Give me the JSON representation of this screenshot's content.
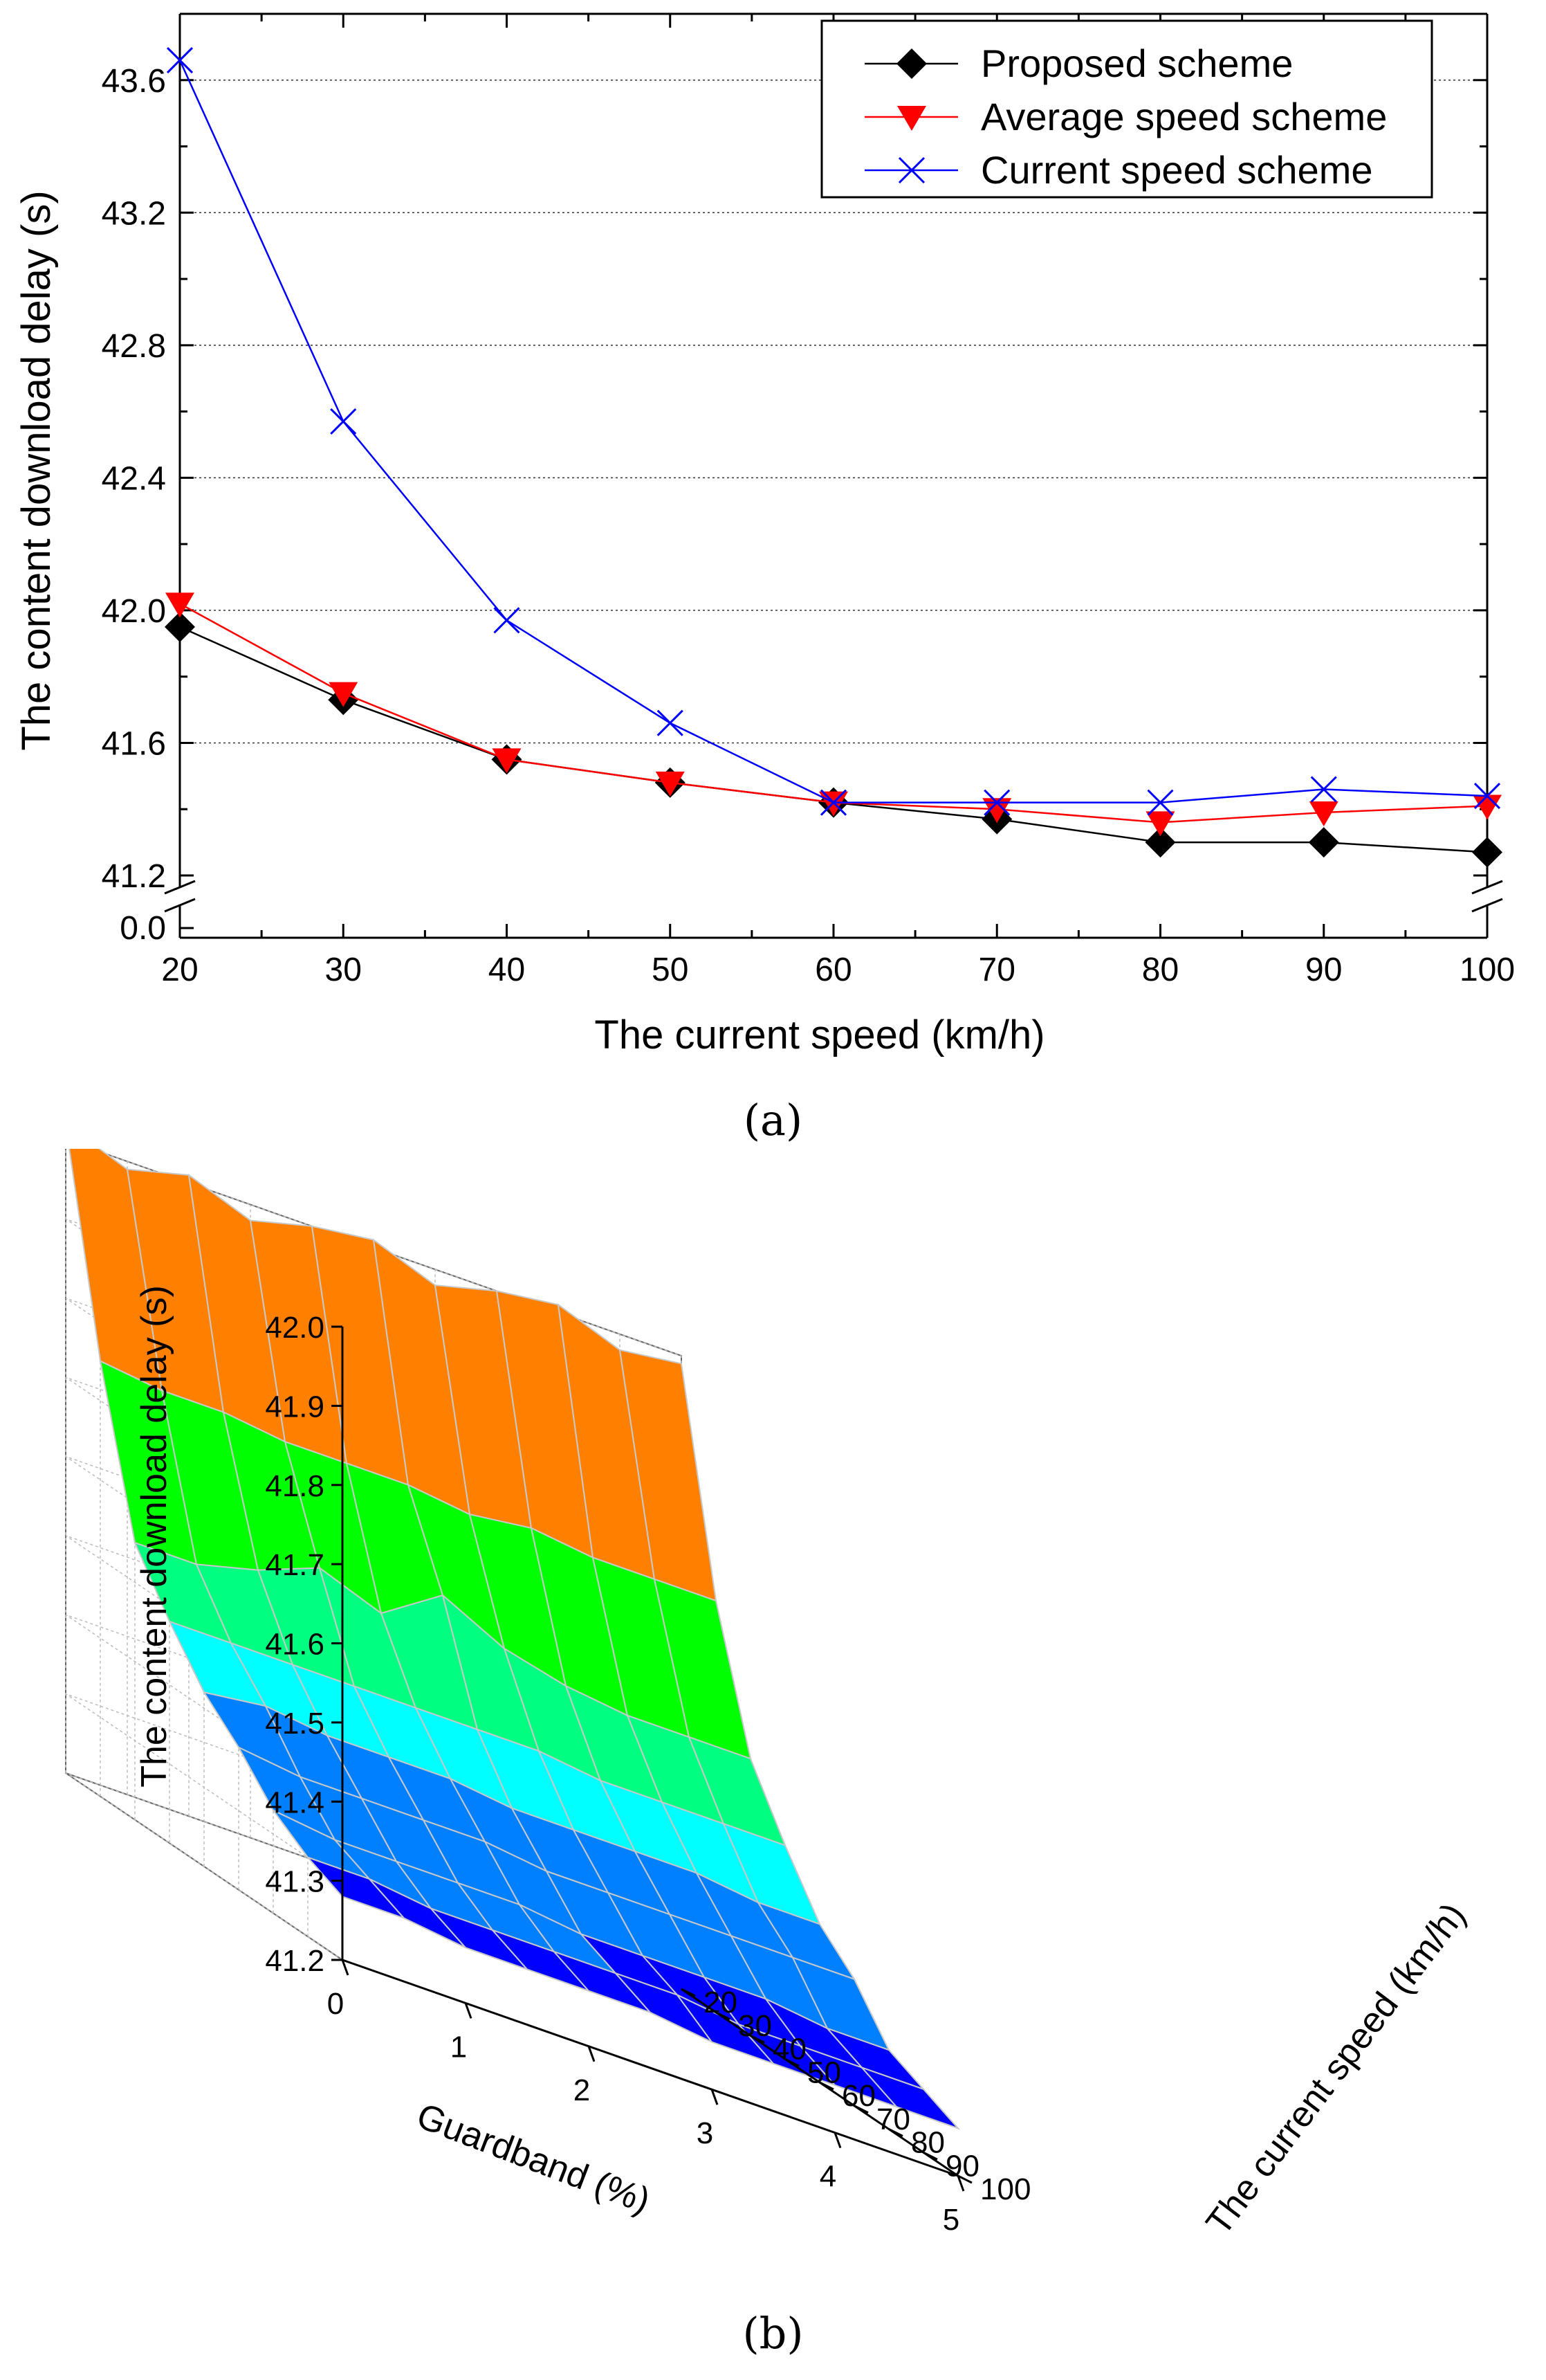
{
  "panel_a": {
    "caption": "(a)",
    "chart_data": {
      "type": "line",
      "x": [
        20,
        30,
        40,
        50,
        60,
        70,
        80,
        90,
        100
      ],
      "xlabel": "The current speed (km/h)",
      "ylabel": "The content download delay (s)",
      "xlim": [
        20,
        100
      ],
      "ylim_upper": [
        41.2,
        43.8
      ],
      "broken_axis_lower_tick": "0.0",
      "xticks": [
        "20",
        "30",
        "40",
        "50",
        "60",
        "70",
        "80",
        "90",
        "100"
      ],
      "yticks": [
        "41.2",
        "41.6",
        "42.0",
        "42.4",
        "42.8",
        "43.2",
        "43.6"
      ],
      "grid": "horizontal dashed",
      "legend_position": "top-right",
      "series": [
        {
          "name": "Proposed scheme",
          "color": "#000000",
          "marker": "diamond",
          "values": [
            41.95,
            41.73,
            41.55,
            41.48,
            41.42,
            41.37,
            41.3,
            41.3,
            41.27
          ]
        },
        {
          "name": "Average speed scheme",
          "color": "#ff0000",
          "marker": "triangle-down",
          "values": [
            42.02,
            41.75,
            41.55,
            41.48,
            41.42,
            41.4,
            41.36,
            41.39,
            41.41
          ]
        },
        {
          "name": "Current speed scheme",
          "color": "#0000ff",
          "marker": "x",
          "values": [
            43.66,
            42.57,
            41.97,
            41.66,
            41.42,
            41.42,
            41.42,
            41.46,
            41.44
          ]
        }
      ]
    }
  },
  "panel_b": {
    "caption": "(b)",
    "chart_data": {
      "type": "surface3d",
      "xlabel": "Guardband (%)",
      "ylabel": "The current speed (km/h)",
      "zlabel": "The content download delay (s)",
      "xticks": [
        "0",
        "1",
        "2",
        "3",
        "4",
        "5"
      ],
      "yticks": [
        "20",
        "30",
        "40",
        "50",
        "60",
        "70",
        "80",
        "90",
        "100"
      ],
      "zticks": [
        "41.2",
        "41.3",
        "41.4",
        "41.5",
        "41.6",
        "41.7",
        "41.8",
        "41.9",
        "42.0"
      ],
      "zlim": [
        41.2,
        42.0
      ],
      "colormap": [
        "#0000ff",
        "#0080ff",
        "#00ffff",
        "#00ff80",
        "#00ff00",
        "#ffff00",
        "#ff8000",
        "#ff0000"
      ],
      "guardband": [
        0,
        0.5,
        1,
        1.5,
        2,
        2.5,
        3,
        3.5,
        4,
        4.5,
        5
      ],
      "speed": [
        20,
        30,
        40,
        50,
        60,
        70,
        80,
        90,
        100
      ],
      "delay": [
        [
          42.02,
          41.99,
          42.01,
          41.98,
          42.0,
          42.01,
          41.98,
          42.0,
          42.01,
          41.98,
          41.99
        ],
        [
          41.75,
          41.74,
          41.74,
          41.73,
          41.73,
          41.73,
          41.72,
          41.73,
          41.72,
          41.72,
          41.72
        ],
        [
          41.55,
          41.55,
          41.57,
          41.6,
          41.57,
          41.62,
          41.58,
          41.56,
          41.55,
          41.55,
          41.55
        ],
        [
          41.48,
          41.48,
          41.48,
          41.48,
          41.48,
          41.48,
          41.48,
          41.47,
          41.47,
          41.47,
          41.47
        ],
        [
          41.42,
          41.43,
          41.42,
          41.42,
          41.42,
          41.41,
          41.41,
          41.41,
          41.41,
          41.4,
          41.4
        ],
        [
          41.38,
          41.37,
          41.37,
          41.37,
          41.37,
          41.36,
          41.36,
          41.36,
          41.36,
          41.36,
          41.36
        ],
        [
          41.33,
          41.32,
          41.32,
          41.32,
          41.32,
          41.31,
          41.31,
          41.31,
          41.31,
          41.3,
          41.3
        ],
        [
          41.3,
          41.3,
          41.29,
          41.29,
          41.29,
          41.29,
          41.29,
          41.28,
          41.28,
          41.28,
          41.28
        ],
        [
          41.28,
          41.28,
          41.27,
          41.27,
          41.27,
          41.27,
          41.26,
          41.26,
          41.26,
          41.26,
          41.26
        ]
      ]
    }
  }
}
